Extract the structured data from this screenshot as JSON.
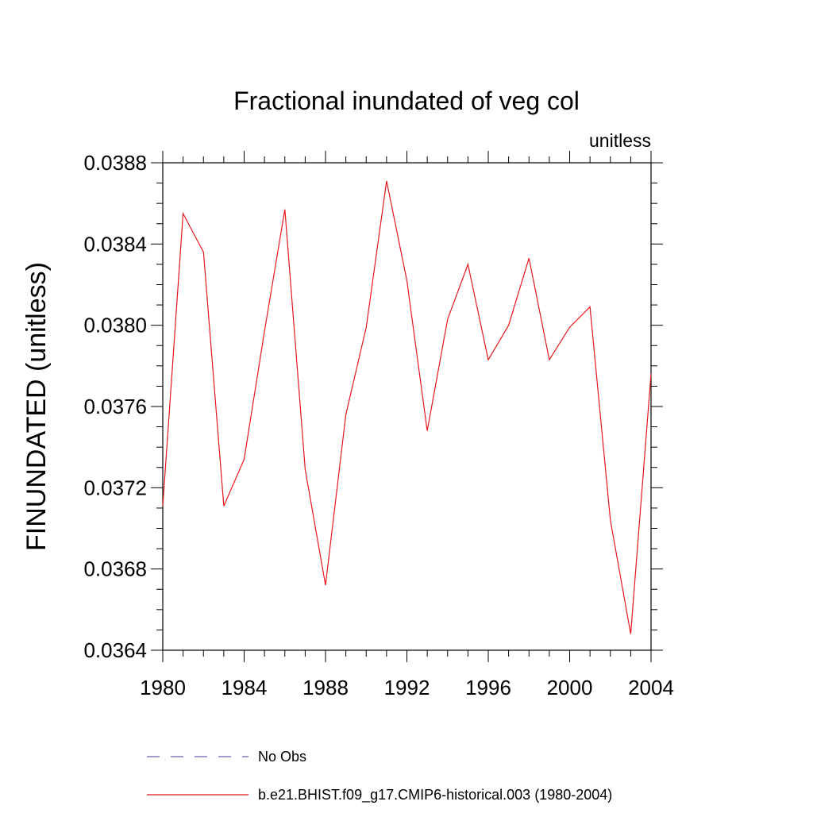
{
  "chart_data": {
    "type": "line",
    "title": "Fractional inundated of veg col",
    "units_label": "unitless",
    "xlabel": "",
    "ylabel": "FINUNDATED  (unitless)",
    "xlim": [
      1980,
      2004
    ],
    "ylim": [
      0.0364,
      0.0388
    ],
    "x_ticks": [
      1980,
      1984,
      1988,
      1992,
      1996,
      2000,
      2004
    ],
    "x_tick_labels": [
      "1980",
      "1984",
      "1988",
      "1992",
      "1996",
      "2000",
      "2004"
    ],
    "y_ticks": [
      0.0364,
      0.0368,
      0.0372,
      0.0376,
      0.038,
      0.0384,
      0.0388
    ],
    "y_tick_labels": [
      "0.0364",
      "0.0368",
      "0.0372",
      "0.0376",
      "0.0380",
      "0.0384",
      "0.0388"
    ],
    "grid": false,
    "series": [
      {
        "name": "b.e21.BHIST.f09_g17.CMIP6-historical.003 (1980-2004)",
        "color": "#e8161b",
        "style": "solid",
        "x": [
          1980,
          1981,
          1982,
          1983,
          1984,
          1985,
          1986,
          1987,
          1988,
          1989,
          1990,
          1991,
          1992,
          1993,
          1994,
          1995,
          1996,
          1997,
          1998,
          1999,
          2000,
          2001,
          2002,
          2003,
          2004
        ],
        "values": [
          0.03711,
          0.03855,
          0.03836,
          0.03711,
          0.03734,
          0.03797,
          0.03857,
          0.03729,
          0.03672,
          0.03756,
          0.03799,
          0.03871,
          0.03822,
          0.03748,
          0.03803,
          0.0383,
          0.03783,
          0.038,
          0.03833,
          0.03783,
          0.03799,
          0.03809,
          0.03704,
          0.03648,
          0.03776
        ]
      }
    ],
    "legend": {
      "placement": "bottom",
      "entries": [
        {
          "label": "No Obs",
          "color": "#6a5fb0",
          "style": "dashed"
        },
        {
          "label": "b.e21.BHIST.f09_g17.CMIP6-historical.003 (1980-2004)",
          "color": "#e8161b",
          "style": "solid"
        }
      ]
    }
  }
}
